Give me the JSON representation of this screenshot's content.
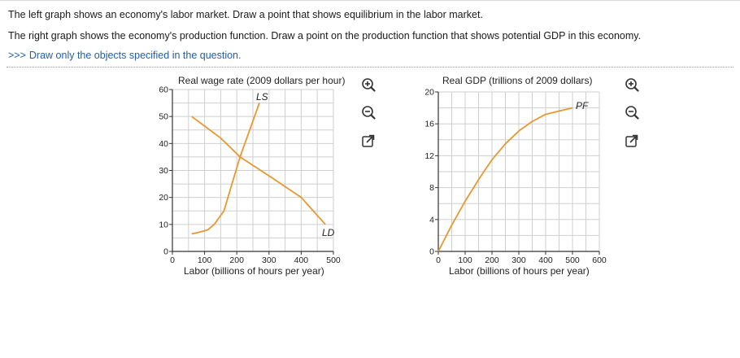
{
  "question": {
    "line1": "The left graph shows an economy's labor market. Draw a point that shows equilibrium in the labor market.",
    "line2": "The right graph shows the economy's production function. Draw a point on the production function that shows potential GDP in this economy.",
    "instruction_arrows": ">>>",
    "instruction": "Draw only the objects specified in the question."
  },
  "colors": {
    "curve": "#e8982e",
    "grid": "#cfcfcf",
    "axis": "#333333",
    "instruction": "#1f5fa8"
  },
  "left_graph": {
    "ylabel": "Real wage rate (2009 dollars per hour)",
    "xlabel": "Labor (billions of hours per year)",
    "supply_label": "LS",
    "demand_label": "LD",
    "x_ticks": [
      "0",
      "100",
      "200",
      "300",
      "400",
      "500"
    ],
    "y_ticks": [
      "0",
      "10",
      "20",
      "30",
      "40",
      "50",
      "60"
    ]
  },
  "right_graph": {
    "ylabel": "Real GDP (trillions of 2009 dollars)",
    "xlabel": "Labor (billions of hours per year)",
    "curve_label": "PF",
    "x_ticks": [
      "0",
      "100",
      "200",
      "300",
      "400",
      "500",
      "600"
    ],
    "y_ticks": [
      "0",
      "4",
      "8",
      "12",
      "16",
      "20"
    ]
  },
  "tools": {
    "zoom_in": "zoom-in-icon",
    "zoom_out": "zoom-out-icon",
    "popout": "external-link-icon"
  },
  "chart_data": [
    {
      "type": "line",
      "title": "",
      "xlabel": "Labor (billions of hours per year)",
      "ylabel": "Real wage rate (2009 dollars per hour)",
      "xlim": [
        0,
        500
      ],
      "ylim": [
        0,
        60
      ],
      "grid": true,
      "series": [
        {
          "name": "LS",
          "x": [
            60,
            80,
            110,
            130,
            160,
            210,
            270
          ],
          "y": [
            6.5,
            7,
            8,
            10,
            15,
            35,
            55
          ]
        },
        {
          "name": "LD",
          "x": [
            60,
            150,
            210,
            300,
            400,
            475
          ],
          "y": [
            50,
            42,
            35,
            28,
            20,
            10
          ]
        }
      ]
    },
    {
      "type": "line",
      "title": "",
      "xlabel": "Labor (billions of hours per year)",
      "ylabel": "Real GDP (trillions of 2009 dollars)",
      "xlim": [
        0,
        600
      ],
      "ylim": [
        0,
        20
      ],
      "grid": true,
      "series": [
        {
          "name": "PF",
          "x": [
            0,
            50,
            100,
            150,
            200,
            250,
            300,
            350,
            400,
            450,
            500
          ],
          "y": [
            0,
            3.3,
            6.3,
            9.0,
            11.5,
            13.5,
            15.1,
            16.3,
            17.2,
            17.6,
            18.0
          ]
        }
      ]
    }
  ]
}
